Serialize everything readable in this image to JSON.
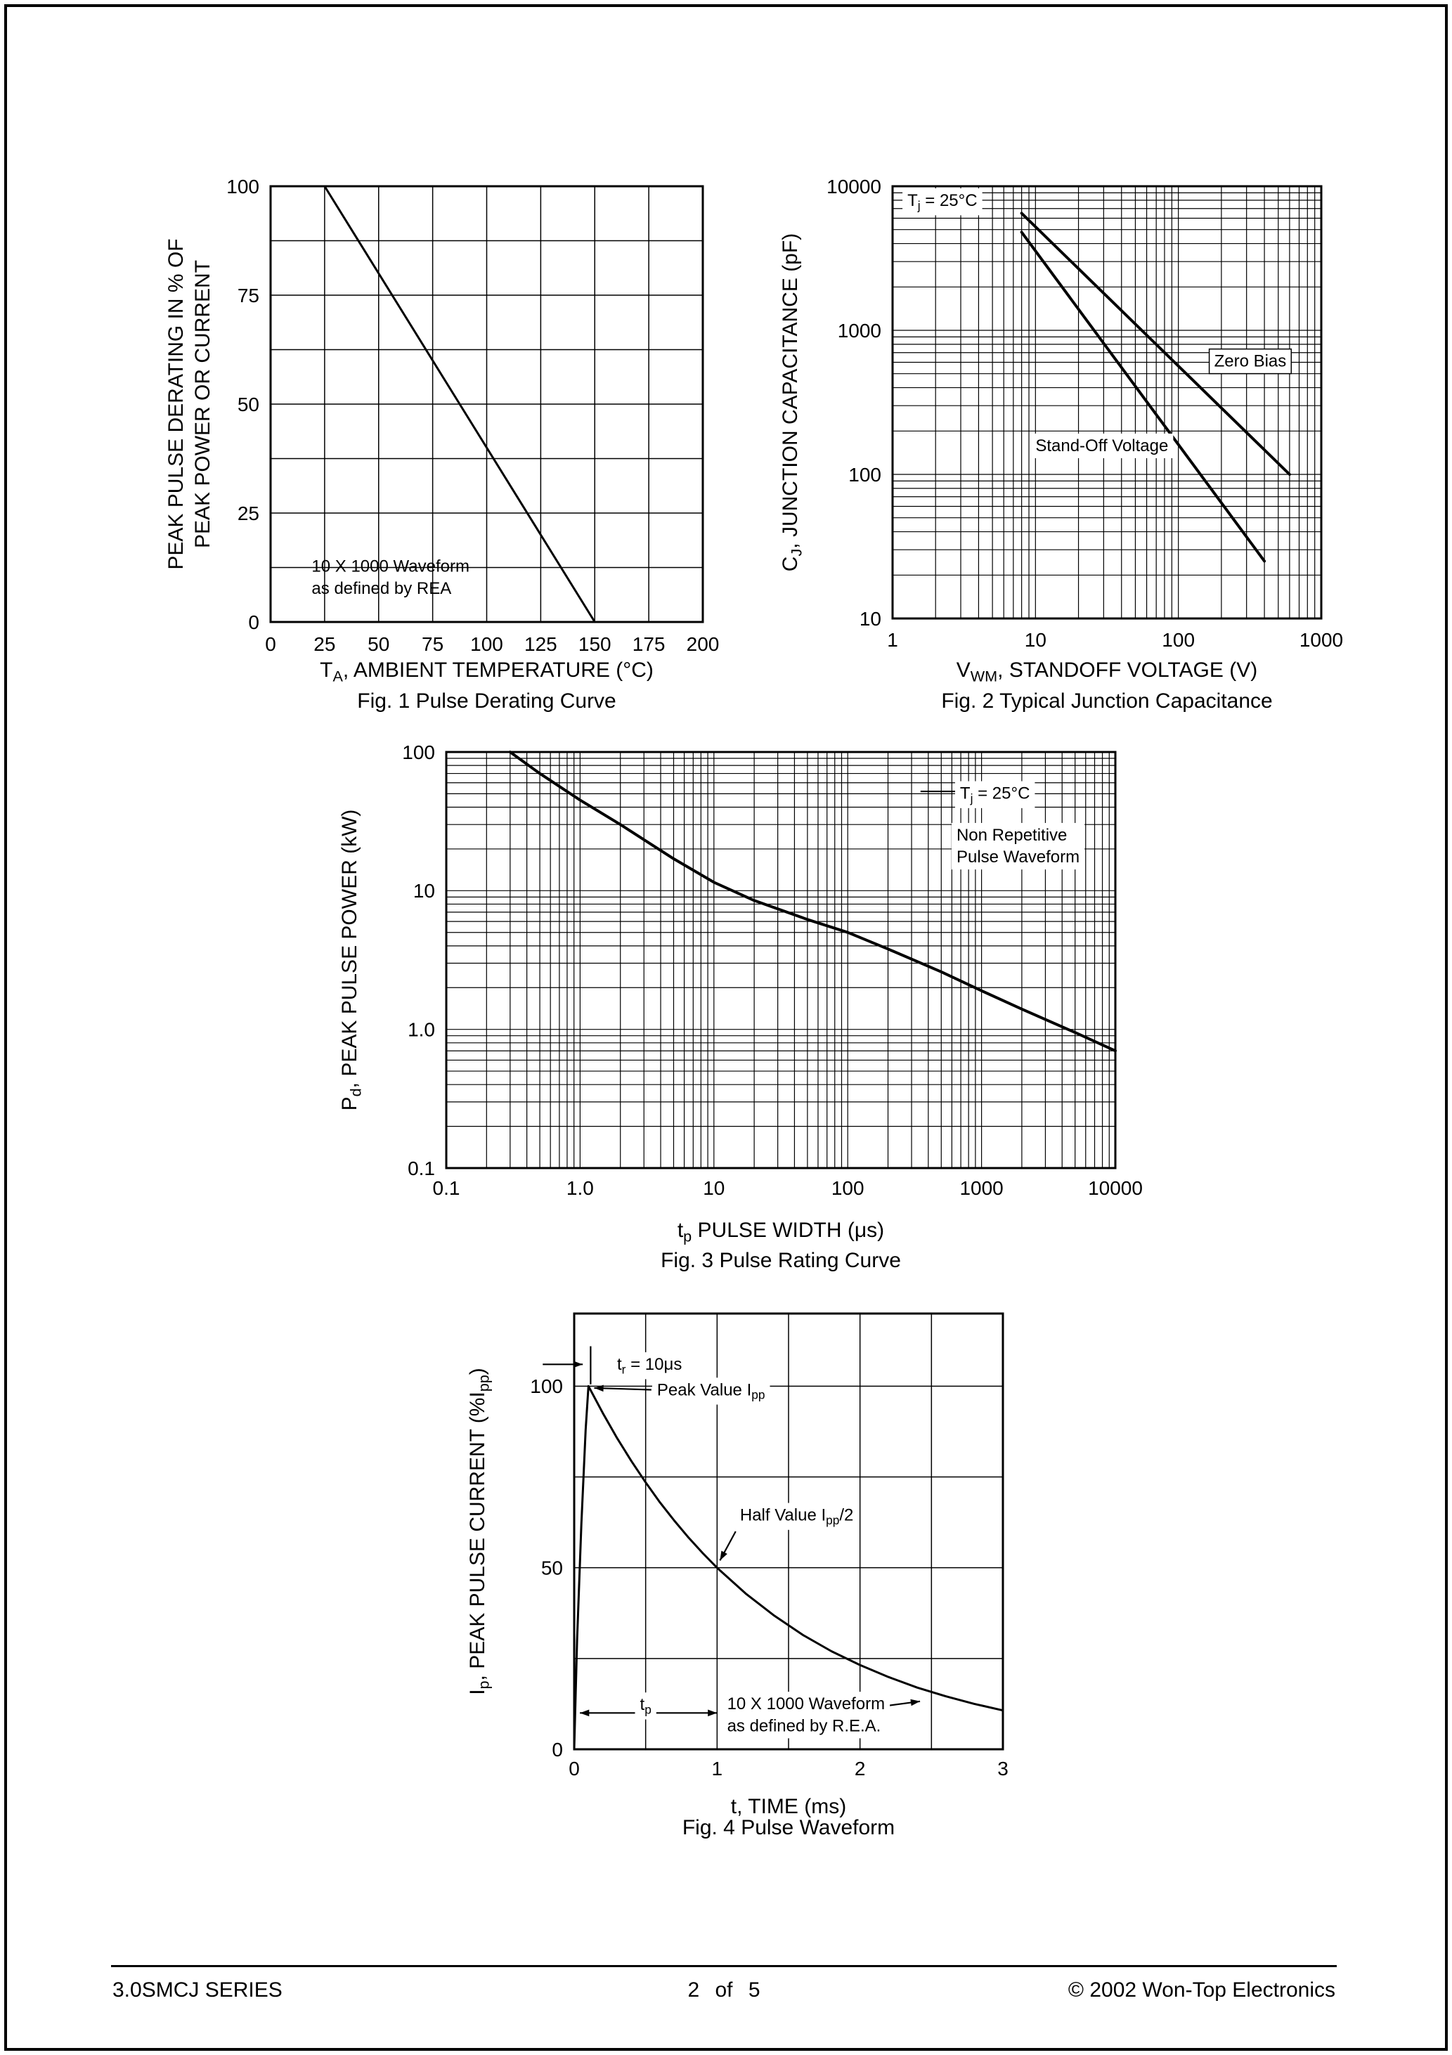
{
  "page": {
    "footer": {
      "left": "3.0SMCJ SERIES",
      "center": "2 of 5",
      "right": "© 2002 Won-Top Electronics"
    }
  },
  "chart_data": [
    {
      "id": "fig1",
      "type": "line",
      "title": "Fig. 1  Pulse Derating Curve",
      "xlabel": "T~A~, AMBIENT TEMPERATURE (°C)",
      "ylabel_lines": [
        "PEAK PULSE DERATING IN % OF",
        "PEAK POWER OR CURRENT"
      ],
      "x": {
        "scale": "linear",
        "min": 0,
        "max": 200,
        "grid_step": 25,
        "ticks": [
          0,
          25,
          50,
          75,
          100,
          125,
          150,
          175,
          200
        ],
        "tick_labels": [
          "0",
          "25",
          "50",
          "75",
          "100",
          "125",
          "150",
          "175",
          "200"
        ]
      },
      "y": {
        "scale": "linear",
        "min": 0,
        "max": 100,
        "grid_step": 12.5,
        "ticks": [
          0,
          25,
          50,
          75,
          100
        ],
        "tick_labels": [
          "0",
          "25",
          "50",
          "75",
          "100"
        ]
      },
      "series": [
        {
          "name": "derating-curve",
          "points": [
            [
              0,
              100
            ],
            [
              25,
              100
            ],
            [
              150,
              0
            ]
          ]
        }
      ],
      "annotations": [
        {
          "text": "10 X 1000 Waveform\nas defined by REA",
          "x": 19,
          "y": 11.5,
          "anchor": "start"
        }
      ]
    },
    {
      "id": "fig2",
      "type": "line",
      "title": "Fig. 2  Typical Junction Capacitance",
      "xlabel": "V~WM~, STANDOFF VOLTAGE (V)",
      "ylabel_lines": [
        "C~J~, JUNCTION CAPACITANCE (pF)"
      ],
      "x": {
        "scale": "log",
        "min": 1,
        "max": 1000,
        "ticks": [
          1,
          10,
          100,
          1000
        ],
        "tick_labels": [
          "1",
          "10",
          "100",
          "1000"
        ]
      },
      "y": {
        "scale": "log",
        "min": 10,
        "max": 10000,
        "ticks": [
          10,
          100,
          1000,
          10000
        ],
        "tick_labels": [
          "10",
          "100",
          "1000",
          "10000"
        ]
      },
      "series": [
        {
          "name": "zero-bias-curve",
          "points": [
            [
              8,
              6500
            ],
            [
              600,
              100
            ]
          ]
        },
        {
          "name": "stand-off-voltage-curve",
          "points": [
            [
              8,
              4800
            ],
            [
              400,
              25
            ]
          ]
        }
      ],
      "annotations": [
        {
          "text": "T~j~ = 25°C",
          "x": 1.27,
          "y": 7300,
          "anchor": "start",
          "bg": true
        },
        {
          "text": "Zero Bias",
          "x": 178,
          "y": 560,
          "anchor": "start",
          "bg": true,
          "box": true
        },
        {
          "text": "Stand-Off Voltage",
          "x": 10,
          "y": 145,
          "anchor": "start",
          "bg": true
        }
      ]
    },
    {
      "id": "fig3",
      "type": "line",
      "title": "Fig. 3 Pulse Rating Curve",
      "xlabel": "t~p~ PULSE WIDTH (μs)",
      "ylabel_lines": [
        "P~d~, PEAK PULSE POWER (kW)"
      ],
      "x": {
        "scale": "log",
        "min": 0.1,
        "max": 10000,
        "ticks": [
          0.1,
          1,
          10,
          100,
          1000,
          10000
        ],
        "tick_labels": [
          "0.1",
          "1.0",
          "10",
          "100",
          "1000",
          "10000"
        ]
      },
      "y": {
        "scale": "log",
        "min": 0.1,
        "max": 100,
        "ticks": [
          0.1,
          1,
          10,
          100
        ],
        "tick_labels": [
          "0.1",
          "1.0",
          "10",
          "100"
        ]
      },
      "series": [
        {
          "name": "pulse-rating-curve",
          "points": [
            [
              0.3,
              100
            ],
            [
              0.5,
              70
            ],
            [
              1,
              45
            ],
            [
              2,
              30
            ],
            [
              5,
              17
            ],
            [
              10,
              11.5
            ],
            [
              20,
              8.5
            ],
            [
              50,
              6.2
            ],
            [
              100,
              5
            ],
            [
              200,
              3.8
            ],
            [
              500,
              2.6
            ],
            [
              1000,
              1.9
            ],
            [
              2000,
              1.4
            ],
            [
              5000,
              0.95
            ],
            [
              10000,
              0.7
            ]
          ]
        }
      ],
      "annotations": [
        {
          "text": "T~j~ = 25°C",
          "x": 690,
          "y": 46,
          "anchor": "start",
          "bg": true
        },
        {
          "text": "Non Repetitive\nPulse Waveform",
          "x": 650,
          "y": 23,
          "anchor": "start",
          "bg": true
        }
      ],
      "arrows": [
        {
          "x1": 350,
          "y1": 52,
          "x2": 680,
          "y2": 52,
          "heads": "none"
        }
      ]
    },
    {
      "id": "fig4",
      "type": "line",
      "title": "Fig. 4  Pulse Waveform",
      "xlabel": "t, TIME (ms)",
      "ylabel_lines": [
        "I~p~, PEAK PULSE CURRENT (%I~pp~)"
      ],
      "x": {
        "scale": "linear",
        "min": 0,
        "max": 3,
        "grid_step": 0.5,
        "ticks": [
          0,
          1,
          2,
          3
        ],
        "tick_labels": [
          "0",
          "1",
          "2",
          "3"
        ]
      },
      "y": {
        "scale": "linear",
        "min": 0,
        "max": 120,
        "grid_step": 25,
        "grid_max": 100,
        "ticks": [
          0,
          50,
          100
        ],
        "tick_labels": [
          "0",
          "50",
          "100"
        ]
      },
      "series": [
        {
          "name": "pulse-waveform-curve",
          "points": [
            [
              0,
              0
            ],
            [
              0.02,
              30
            ],
            [
              0.05,
              62
            ],
            [
              0.08,
              88
            ],
            [
              0.1,
              100
            ],
            [
              0.2,
              92.6
            ],
            [
              0.3,
              85.7
            ],
            [
              0.4,
              79.4
            ],
            [
              0.5,
              73.5
            ],
            [
              0.6,
              68
            ],
            [
              0.7,
              63
            ],
            [
              0.8,
              58.3
            ],
            [
              0.9,
              54
            ],
            [
              1,
              50
            ],
            [
              1.2,
              42.9
            ],
            [
              1.4,
              36.8
            ],
            [
              1.6,
              31.5
            ],
            [
              1.8,
              27
            ],
            [
              2,
              23.2
            ],
            [
              2.2,
              19.9
            ],
            [
              2.4,
              17
            ],
            [
              2.6,
              14.6
            ],
            [
              2.8,
              12.5
            ],
            [
              3,
              10.7
            ]
          ]
        }
      ],
      "annotations": [
        {
          "text": "t~r~ = 10μs",
          "x": 0.3,
          "y": 104.5,
          "anchor": "start",
          "bg": true
        },
        {
          "text": "Peak Value I~pp~",
          "x": 0.58,
          "y": 97.5,
          "anchor": "start",
          "bg": true
        },
        {
          "text": "Half Value I~pp~/2",
          "x": 1.16,
          "y": 63,
          "anchor": "start",
          "bg": true
        },
        {
          "text": "t~p~",
          "x": 0.5,
          "y": 10.8,
          "anchor": "middle",
          "bg": true
        },
        {
          "text": "10 X 1000 Waveform\nas defined by R.E.A.",
          "x": 1.07,
          "y": 11,
          "anchor": "start",
          "bg": true
        }
      ],
      "arrows": [
        {
          "x1": -0.22,
          "y1": 106,
          "x2": 0.06,
          "y2": 106,
          "heads": "end"
        },
        {
          "x1": 0.115,
          "y1": 100.5,
          "x2": 0.115,
          "y2": 111,
          "heads": "none"
        },
        {
          "x1": 0.54,
          "y1": 99,
          "x2": 0.14,
          "y2": 99.5,
          "heads": "end"
        },
        {
          "x1": 1.13,
          "y1": 60,
          "x2": 1.02,
          "y2": 52,
          "heads": "end"
        },
        {
          "x1": 0.04,
          "y1": 10,
          "x2": 1.0,
          "y2": 10,
          "heads": "both"
        },
        {
          "x1": 2.0,
          "y1": 11,
          "x2": 2.42,
          "y2": 13.2,
          "heads": "end"
        }
      ]
    }
  ]
}
